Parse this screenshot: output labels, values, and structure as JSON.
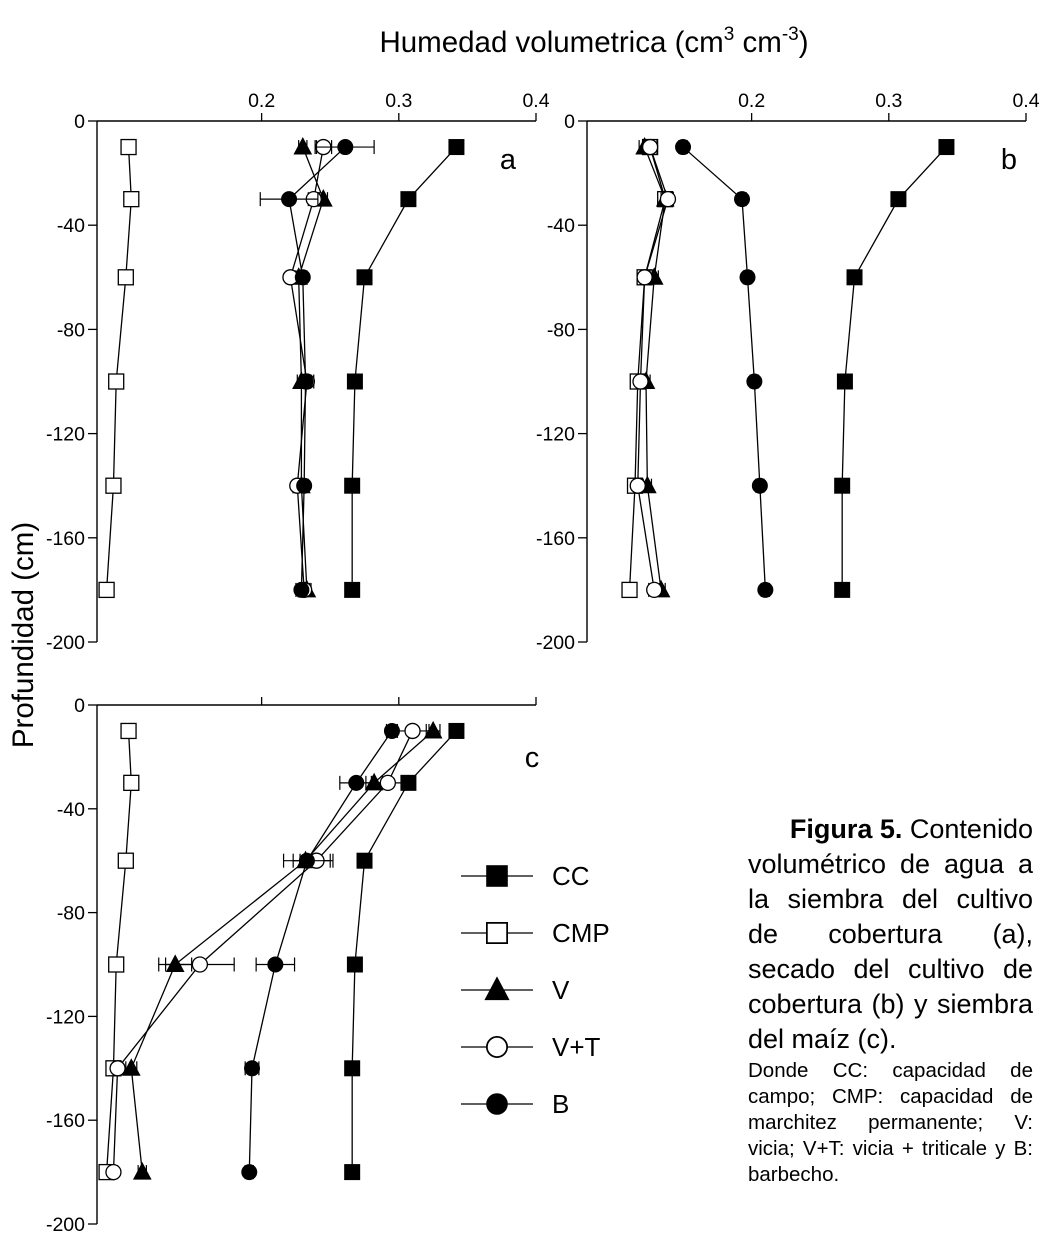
{
  "figure": {
    "x_axis_title_main": "Humedad volumetrica (cm",
    "x_axis_title_sup1": "3",
    "x_axis_title_mid": " cm",
    "x_axis_title_sup2": "-3",
    "x_axis_title_end": ")",
    "y_axis_title": "Profundidad (cm)"
  },
  "caption": {
    "label": "Figura 5.",
    "line1": "Contenido",
    "body": "volumétrico de agua a la siembra del cultivo de cobertura (a), secado del cultivo de cobertura (b) y siembra del maíz (c).",
    "abbreviations": "Donde CC: capacidad de campo; CMP: capacidad de marchitez permanente; V: vicia; V+T: vicia + triticale y B: barbecho."
  },
  "legend": [
    {
      "name": "CC",
      "marker": "filled-square"
    },
    {
      "name": "CMP",
      "marker": "open-square"
    },
    {
      "name": "V",
      "marker": "filled-triangle"
    },
    {
      "name": "V+T",
      "marker": "open-circle"
    },
    {
      "name": "B",
      "marker": "filled-circle"
    }
  ],
  "chart_data": [
    {
      "type": "line",
      "panel_label": "a",
      "xlim": [
        0.08,
        0.4
      ],
      "ylim": [
        -200,
        0
      ],
      "x_ticks": [
        "0.2",
        "0.3",
        "0.4"
      ],
      "x_tick_values": [
        0.2,
        0.3,
        0.4
      ],
      "y_ticks": [
        "0",
        "-40",
        "-80",
        "-120",
        "-160",
        "-200"
      ],
      "y_tick_values": [
        0,
        -40,
        -80,
        -120,
        -160,
        -200
      ],
      "depth": [
        -10,
        -30,
        -60,
        -100,
        -140,
        -180
      ],
      "series": [
        {
          "name": "CC",
          "marker": "filled-square",
          "x": [
            0.342,
            0.307,
            0.275,
            0.268,
            0.266,
            0.266
          ]
        },
        {
          "name": "CMP",
          "marker": "open-square",
          "x": [
            0.103,
            0.105,
            0.101,
            0.094,
            0.092,
            0.087
          ]
        },
        {
          "name": "V",
          "marker": "filled-triangle",
          "x": [
            0.23,
            0.245,
            0.227,
            0.229,
            0.229,
            0.233
          ],
          "err": [
            0.003,
            0.003,
            0.002,
            0.003,
            0.002,
            0.003
          ]
        },
        {
          "name": "V+T",
          "marker": "open-circle",
          "x": [
            0.245,
            0.238,
            0.221,
            0.233,
            0.226,
            0.231
          ],
          "err": [
            0.006,
            0.004,
            0.003,
            0.005,
            0.003,
            0.004
          ]
        },
        {
          "name": "B",
          "marker": "filled-circle",
          "x": [
            0.261,
            0.22,
            0.23,
            0.232,
            0.231,
            0.229
          ],
          "err": [
            0.021,
            0.021,
            0.003,
            0.004,
            0.003,
            0.004
          ]
        }
      ]
    },
    {
      "type": "line",
      "panel_label": "b",
      "xlim": [
        0.08,
        0.4
      ],
      "ylim": [
        -200,
        0
      ],
      "x_ticks": [
        "0.2",
        "0.3",
        "0.4"
      ],
      "x_tick_values": [
        0.2,
        0.3,
        0.4
      ],
      "y_ticks": [
        "0",
        "-40",
        "-80",
        "-120",
        "-160",
        "-200"
      ],
      "y_tick_values": [
        0,
        -40,
        -80,
        -120,
        -160,
        -200
      ],
      "depth": [
        -10,
        -30,
        -60,
        -100,
        -140,
        -180
      ],
      "series": [
        {
          "name": "CC",
          "marker": "filled-square",
          "x": [
            0.342,
            0.307,
            0.275,
            0.268,
            0.266,
            0.266
          ]
        },
        {
          "name": "CMP",
          "marker": "open-square",
          "x": [
            0.126,
            0.137,
            0.122,
            0.117,
            0.115,
            0.111
          ]
        },
        {
          "name": "V",
          "marker": "filled-triangle",
          "x": [
            0.122,
            0.137,
            0.129,
            0.123,
            0.124,
            0.134
          ],
          "err": [
            0.004,
            0.003,
            0.003,
            0.003,
            0.003,
            0.003
          ]
        },
        {
          "name": "V+T",
          "marker": "open-circle",
          "x": [
            0.126,
            0.139,
            0.122,
            0.119,
            0.117,
            0.129
          ],
          "err": [
            0.005,
            0.004,
            0.003,
            0.003,
            0.003,
            0.004
          ]
        },
        {
          "name": "B",
          "marker": "filled-circle",
          "x": [
            0.15,
            0.193,
            0.197,
            0.202,
            0.206,
            0.21
          ],
          "err": [
            0.003,
            0.003,
            0.003,
            0.003,
            0.003,
            0.003
          ]
        }
      ]
    },
    {
      "type": "line",
      "panel_label": "c",
      "xlim": [
        0.08,
        0.4
      ],
      "ylim": [
        -200,
        0
      ],
      "x_ticks": [],
      "x_tick_values": [
        0.2,
        0.3,
        0.4
      ],
      "y_ticks": [
        "0",
        "-40",
        "-80",
        "-120",
        "-160",
        "-200"
      ],
      "y_tick_values": [
        0,
        -40,
        -80,
        -120,
        -160,
        -200
      ],
      "depth": [
        -10,
        -30,
        -60,
        -100,
        -140,
        -180
      ],
      "series": [
        {
          "name": "CC",
          "marker": "filled-square",
          "x": [
            0.342,
            0.307,
            0.275,
            0.268,
            0.266,
            0.266
          ]
        },
        {
          "name": "CMP",
          "marker": "open-square",
          "x": [
            0.103,
            0.105,
            0.101,
            0.094,
            0.092,
            0.087
          ]
        },
        {
          "name": "V",
          "marker": "filled-triangle",
          "x": [
            0.325,
            0.282,
            0.232,
            0.137,
            0.105,
            0.113
          ],
          "err": [
            0.005,
            0.006,
            0.009,
            0.012,
            0.004,
            0.003
          ]
        },
        {
          "name": "V+T",
          "marker": "open-circle",
          "x": [
            0.31,
            0.292,
            0.24,
            0.155,
            0.095,
            0.092
          ],
          "err": [
            0.012,
            0.012,
            0.012,
            0.025,
            0.003,
            0.003
          ]
        },
        {
          "name": "B",
          "marker": "filled-circle",
          "x": [
            0.295,
            0.269,
            0.233,
            0.21,
            0.193,
            0.191
          ],
          "err": [
            0.004,
            0.012,
            0.017,
            0.014,
            0.005,
            0.003
          ]
        }
      ]
    }
  ]
}
